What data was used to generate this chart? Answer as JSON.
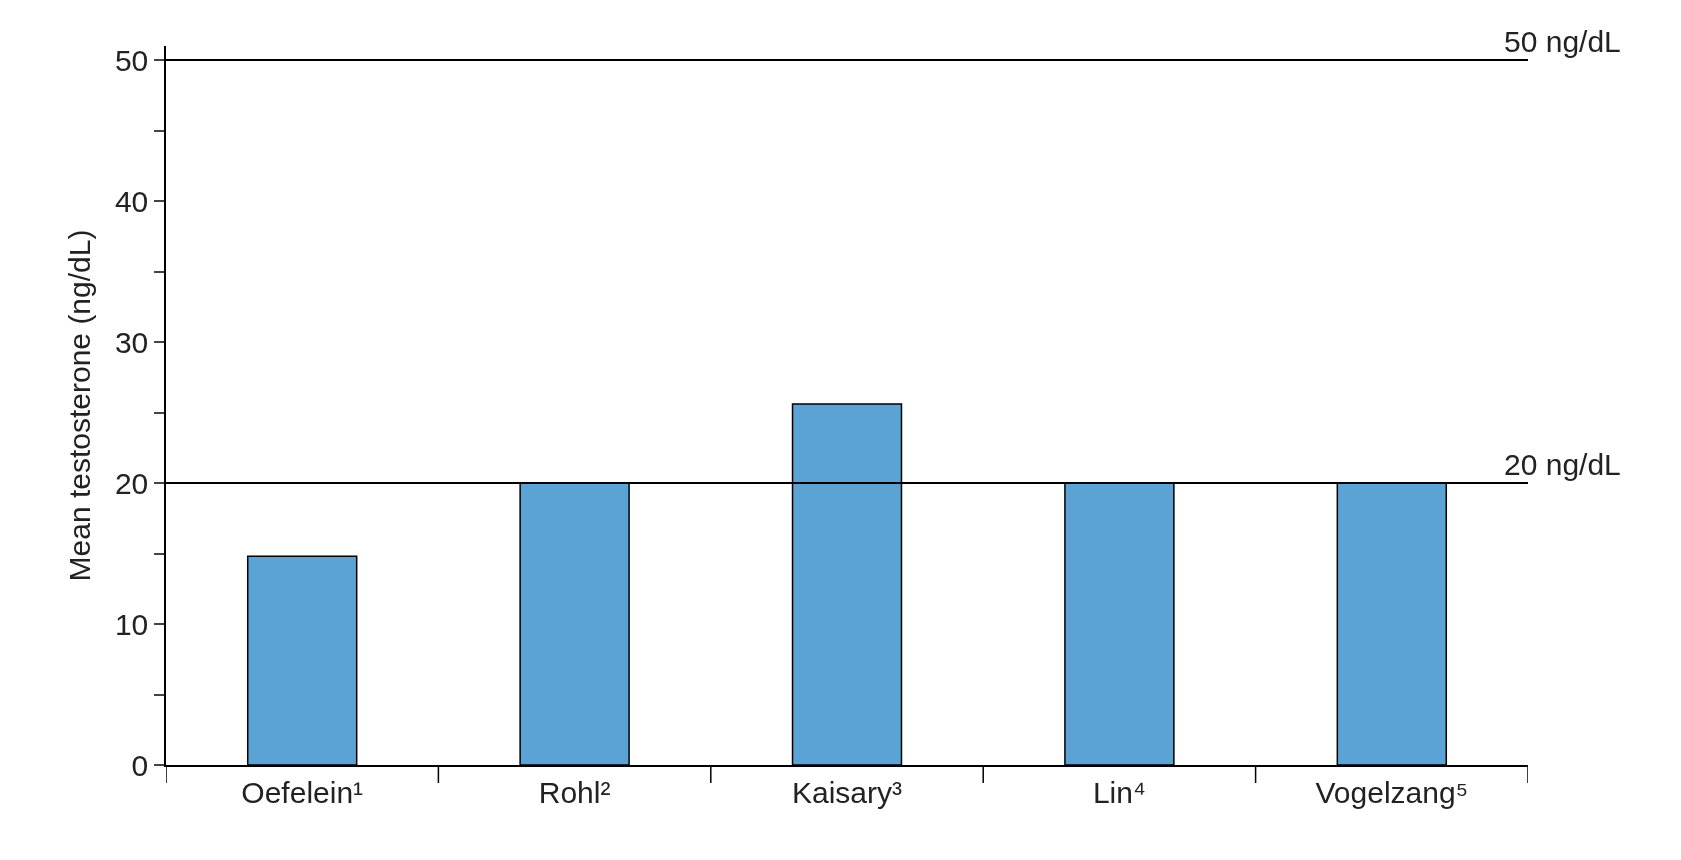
{
  "chart_data": {
    "type": "bar",
    "ylabel": "Mean testosterone (ng/dL)",
    "categories": [
      "Oefelein¹",
      "Rohl²",
      "Kaisary³",
      "Lin⁴",
      "Vogelzang⁵"
    ],
    "values": [
      14.8,
      20,
      25.6,
      20,
      20
    ],
    "color": "#5ba3d4",
    "ylim": [
      0,
      51
    ],
    "yticks": [
      0,
      {
        "value": 5,
        "label": null
      },
      10,
      {
        "value": 15,
        "label": null
      },
      20,
      {
        "value": 25,
        "label": null
      },
      30,
      {
        "value": 35,
        "label": null
      },
      40,
      {
        "value": 45,
        "label": null
      },
      50
    ],
    "ref_lines": [
      {
        "axis": "y",
        "value": 20,
        "label": "20 ng/dL",
        "color": "#000000"
      },
      {
        "axis": "y",
        "value": 50,
        "label": "50 ng/dL",
        "color": "#000000"
      }
    ]
  }
}
